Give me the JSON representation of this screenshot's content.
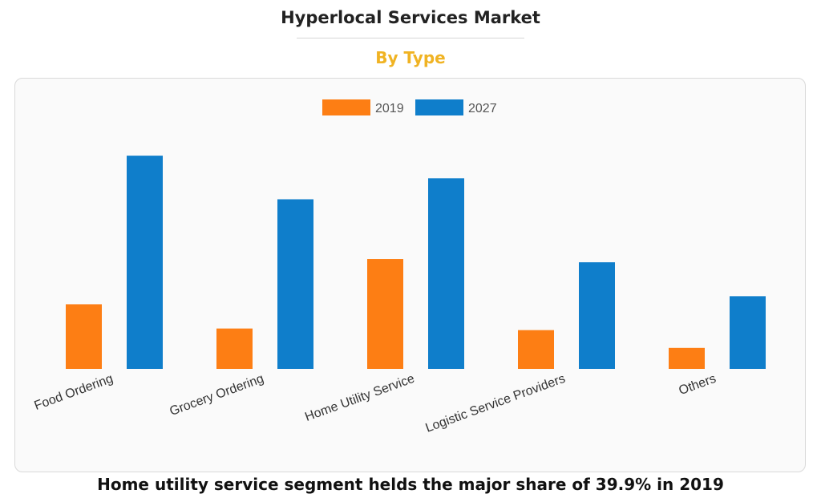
{
  "header": {
    "title": "Hyperlocal Services Market",
    "subtitle": "By Type"
  },
  "footer": {
    "caption": "Home utility service segment helds the major share of 39.9% in 2019"
  },
  "chart_data": {
    "type": "bar",
    "title": "Hyperlocal Services Market",
    "subtitle": "By Type",
    "categories": [
      "Food Ordering",
      "Grocery Ordering",
      "Home Utility Service",
      "Logistic Service Providers",
      "Others"
    ],
    "series": [
      {
        "name": "2019",
        "color": "#fd7e14",
        "values": [
          20,
          12.5,
          34,
          12,
          6.5
        ]
      },
      {
        "name": "2027",
        "color": "#0f7ecb",
        "values": [
          66,
          52.5,
          59,
          33,
          22.5
        ]
      }
    ],
    "ylim": [
      0,
      70
    ],
    "grid": false,
    "legend": "top-center",
    "xlabel": "",
    "ylabel": ""
  }
}
